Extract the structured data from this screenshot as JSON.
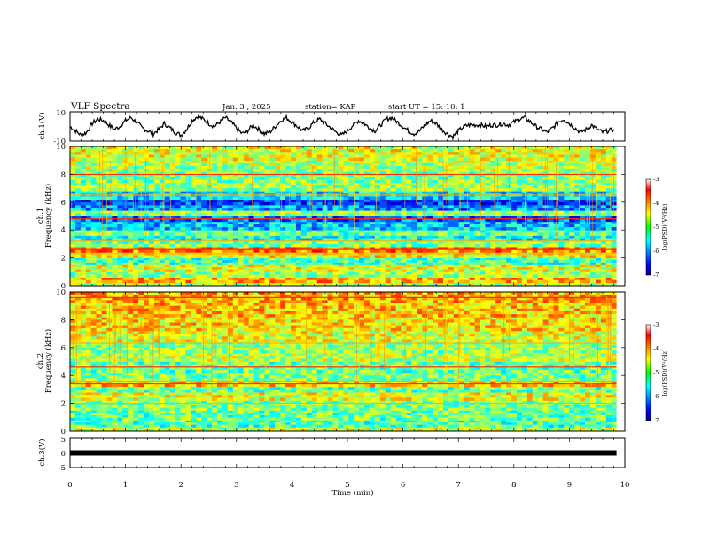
{
  "header": {
    "title": "VLF Spectra",
    "date": "Jan. 3 , 2025",
    "station": "station= KAP",
    "start": "start UT = 15: 10: 1"
  },
  "colorbar": {
    "label": "log(PSD)(V²/Hz)",
    "ticks": [
      "-3",
      "-4",
      "-5",
      "-6",
      "-7"
    ]
  },
  "chart_data": [
    {
      "type": "line",
      "name": "ch.1 waveform",
      "ylabel": "ch.1(V)",
      "ylim": [
        -10,
        10
      ],
      "yticks": [
        "10",
        "-10"
      ],
      "x": [
        0,
        0.1,
        0.2,
        0.3,
        0.4,
        0.5,
        0.6,
        0.7,
        0.8,
        0.9,
        1.0,
        1.1,
        1.2,
        1.3,
        1.4,
        1.5,
        1.6,
        1.7,
        1.8,
        1.9,
        2.0,
        2.1,
        2.2,
        2.3,
        2.4,
        2.5,
        2.6,
        2.7,
        2.8,
        2.9,
        3.0,
        3.1,
        3.2,
        3.3,
        3.4,
        3.5,
        3.6,
        3.7,
        3.8,
        3.9,
        4.0,
        4.1,
        4.2,
        4.3,
        4.4,
        4.5,
        4.6,
        4.7,
        4.8,
        4.9,
        5.0,
        5.1,
        5.2,
        5.3,
        5.4,
        5.5,
        5.6,
        5.7,
        5.8,
        5.9,
        6.0,
        6.1,
        6.2,
        6.3,
        6.4,
        6.5,
        6.6,
        6.7,
        6.8,
        6.9,
        7.0,
        7.1,
        7.2,
        7.3,
        7.4,
        7.5,
        7.6,
        7.7,
        7.8,
        7.9,
        8.0,
        8.1,
        8.2,
        8.3,
        8.4,
        8.5,
        8.6,
        8.7,
        8.8,
        8.9,
        9.0,
        9.1,
        9.2,
        9.3,
        9.4,
        9.5,
        9.6,
        9.7,
        9.8
      ],
      "values": [
        0,
        -3,
        -6,
        -4,
        2,
        5,
        4,
        1,
        -2,
        0,
        4,
        6,
        3,
        -1,
        -3,
        -5,
        -2,
        2,
        -1,
        -4,
        -6,
        -2,
        4,
        7,
        5,
        2,
        0,
        3,
        6,
        3,
        -1,
        -5,
        -3,
        1,
        -2,
        -5,
        -4,
        0,
        4,
        6,
        3,
        0,
        -3,
        -1,
        3,
        5,
        2,
        -1,
        -4,
        -6,
        -3,
        1,
        4,
        2,
        -1,
        -3,
        1,
        5,
        6,
        3,
        0,
        -3,
        -5,
        -3,
        1,
        4,
        2,
        -2,
        -5,
        -7,
        -3,
        0,
        1,
        1,
        1,
        0,
        1,
        1,
        2,
        1,
        3,
        5,
        6,
        3,
        0,
        -2,
        -4,
        -1,
        3,
        5,
        2,
        -1,
        -4,
        -2,
        1,
        -2,
        -4,
        -3,
        -2
      ],
      "x_range": [
        0,
        10
      ]
    },
    {
      "type": "heatmap",
      "name": "ch.1 spectrogram",
      "ylabel": "ch.1",
      "ylabel2": "Frequency (kHz)",
      "ylim": [
        0,
        10
      ],
      "yticks": [
        "0",
        "2",
        "4",
        "6",
        "8",
        "10"
      ],
      "x_range": [
        0,
        9.85
      ],
      "bands_khz_to_logpsd": [
        [
          0.0,
          0.2,
          -4.8
        ],
        [
          0.2,
          0.6,
          -4.2
        ],
        [
          0.6,
          1.0,
          -4.9
        ],
        [
          1.0,
          1.5,
          -4.6
        ],
        [
          1.5,
          2.0,
          -5.2
        ],
        [
          2.0,
          2.4,
          -4.5
        ],
        [
          2.4,
          2.8,
          -4.0
        ],
        [
          2.8,
          3.2,
          -5.0
        ],
        [
          3.2,
          3.6,
          -5.4
        ],
        [
          3.6,
          4.0,
          -5.1
        ],
        [
          4.0,
          4.6,
          -5.7
        ],
        [
          4.6,
          5.0,
          -6.1
        ],
        [
          5.0,
          5.4,
          -4.9
        ],
        [
          5.4,
          5.8,
          -5.9
        ],
        [
          5.8,
          6.2,
          -6.3
        ],
        [
          6.2,
          6.8,
          -5.6
        ],
        [
          6.8,
          7.4,
          -4.9
        ],
        [
          7.4,
          8.2,
          -5.0
        ],
        [
          8.2,
          9.0,
          -4.8
        ],
        [
          9.0,
          10.0,
          -4.6
        ]
      ],
      "lines_khz": [
        2.3,
        2.6,
        3.2,
        4.8,
        6.5,
        8.0
      ]
    },
    {
      "type": "heatmap",
      "name": "ch.2 spectrogram",
      "ylabel": "ch.2",
      "ylabel2": "Frequency (kHz)",
      "ylim": [
        0,
        10
      ],
      "yticks": [
        "0",
        "2",
        "4",
        "6",
        "8",
        "10"
      ],
      "x_range": [
        0,
        9.85
      ],
      "bands_khz_to_logpsd": [
        [
          0.0,
          0.3,
          -4.7
        ],
        [
          0.3,
          0.8,
          -5.2
        ],
        [
          0.8,
          1.5,
          -5.1
        ],
        [
          1.5,
          2.2,
          -5.0
        ],
        [
          2.2,
          2.8,
          -4.6
        ],
        [
          2.8,
          3.2,
          -5.1
        ],
        [
          3.2,
          3.6,
          -4.3
        ],
        [
          3.6,
          4.2,
          -5.0
        ],
        [
          4.2,
          5.0,
          -5.1
        ],
        [
          5.0,
          5.6,
          -4.8
        ],
        [
          5.6,
          6.4,
          -4.9
        ],
        [
          6.4,
          7.2,
          -4.6
        ],
        [
          7.2,
          8.2,
          -4.4
        ],
        [
          8.2,
          9.2,
          -4.3
        ],
        [
          9.2,
          10.0,
          -4.2
        ]
      ],
      "lines_khz": [
        2.0,
        3.4,
        3.6,
        4.6,
        6.3,
        9.6
      ]
    },
    {
      "type": "line",
      "name": "ch.3 waveform",
      "ylabel": "ch.3(V)",
      "ylim": [
        -5,
        5
      ],
      "yticks": [
        "5",
        "0",
        "-5"
      ],
      "x": [
        0,
        9.85
      ],
      "values": [
        0,
        0
      ],
      "x_range": [
        0,
        10
      ]
    }
  ],
  "xaxis": {
    "label": "Time (min)",
    "ticks": [
      "0",
      "1",
      "2",
      "3",
      "4",
      "5",
      "6",
      "7",
      "8",
      "9",
      "10"
    ],
    "range": [
      0,
      10
    ]
  }
}
